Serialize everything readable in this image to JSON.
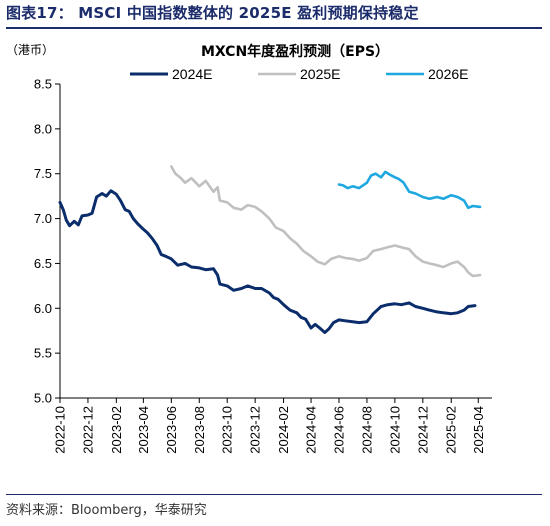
{
  "figure": {
    "title": "图表17：  MSCI 中国指数整体的 2025E 盈利预期保持稳定",
    "source": "资料来源：Bloomberg，华泰研究"
  },
  "chart_data": {
    "type": "line",
    "title": "MXCN年度盈利预测（EPS）",
    "unit": "（港币）",
    "xlabel": "",
    "ylabel": "",
    "ylim": [
      5.0,
      8.5
    ],
    "yticks": [
      "8.5",
      "8.0",
      "7.5",
      "7.0",
      "6.5",
      "6.0",
      "5.5",
      "5.0"
    ],
    "xlim": [
      "2022-10",
      "2025-05"
    ],
    "xticks": [
      "2022-10",
      "2022-12",
      "2023-02",
      "2023-04",
      "2023-06",
      "2023-08",
      "2023-10",
      "2023-12",
      "2024-02",
      "2024-04",
      "2024-06",
      "2024-08",
      "2024-10",
      "2024-12",
      "2025-02",
      "2025-04"
    ],
    "grid": false,
    "legend_position": "top",
    "series": [
      {
        "name": "2024E",
        "color": "#0b2d6b",
        "points": [
          [
            "2022-10-01",
            7.18
          ],
          [
            "2022-10-08",
            7.1
          ],
          [
            "2022-10-15",
            6.98
          ],
          [
            "2022-10-22",
            6.92
          ],
          [
            "2022-11-01",
            6.97
          ],
          [
            "2022-11-10",
            6.93
          ],
          [
            "2022-11-18",
            7.03
          ],
          [
            "2022-12-01",
            7.04
          ],
          [
            "2022-12-10",
            7.06
          ],
          [
            "2022-12-20",
            7.24
          ],
          [
            "2023-01-01",
            7.28
          ],
          [
            "2023-01-10",
            7.25
          ],
          [
            "2023-01-20",
            7.31
          ],
          [
            "2023-02-01",
            7.27
          ],
          [
            "2023-02-10",
            7.2
          ],
          [
            "2023-02-20",
            7.1
          ],
          [
            "2023-03-01",
            7.08
          ],
          [
            "2023-03-10",
            7.0
          ],
          [
            "2023-03-20",
            6.94
          ],
          [
            "2023-04-01",
            6.88
          ],
          [
            "2023-04-10",
            6.84
          ],
          [
            "2023-04-20",
            6.78
          ],
          [
            "2023-05-01",
            6.7
          ],
          [
            "2023-05-10",
            6.6
          ],
          [
            "2023-05-20",
            6.58
          ],
          [
            "2023-06-01",
            6.55
          ],
          [
            "2023-06-15",
            6.48
          ],
          [
            "2023-07-01",
            6.5
          ],
          [
            "2023-07-15",
            6.46
          ],
          [
            "2023-08-01",
            6.45
          ],
          [
            "2023-08-15",
            6.43
          ],
          [
            "2023-09-01",
            6.44
          ],
          [
            "2023-09-10",
            6.37
          ],
          [
            "2023-09-15",
            6.27
          ],
          [
            "2023-10-01",
            6.25
          ],
          [
            "2023-10-15",
            6.2
          ],
          [
            "2023-11-01",
            6.22
          ],
          [
            "2023-11-15",
            6.25
          ],
          [
            "2023-12-01",
            6.22
          ],
          [
            "2023-12-15",
            6.22
          ],
          [
            "2024-01-01",
            6.17
          ],
          [
            "2024-01-10",
            6.12
          ],
          [
            "2024-01-20",
            6.1
          ],
          [
            "2024-02-01",
            6.04
          ],
          [
            "2024-02-15",
            5.98
          ],
          [
            "2024-03-01",
            5.95
          ],
          [
            "2024-03-10",
            5.9
          ],
          [
            "2024-03-20",
            5.88
          ],
          [
            "2024-04-01",
            5.78
          ],
          [
            "2024-04-10",
            5.82
          ],
          [
            "2024-04-20",
            5.78
          ],
          [
            "2024-05-01",
            5.73
          ],
          [
            "2024-05-10",
            5.77
          ],
          [
            "2024-05-20",
            5.84
          ],
          [
            "2024-06-01",
            5.87
          ],
          [
            "2024-06-15",
            5.86
          ],
          [
            "2024-07-01",
            5.85
          ],
          [
            "2024-07-15",
            5.84
          ],
          [
            "2024-08-01",
            5.85
          ],
          [
            "2024-08-15",
            5.94
          ],
          [
            "2024-09-01",
            6.02
          ],
          [
            "2024-09-15",
            6.04
          ],
          [
            "2024-10-01",
            6.05
          ],
          [
            "2024-10-15",
            6.04
          ],
          [
            "2024-11-01",
            6.06
          ],
          [
            "2024-11-15",
            6.02
          ],
          [
            "2024-12-01",
            6.0
          ],
          [
            "2024-12-15",
            5.98
          ],
          [
            "2025-01-01",
            5.96
          ],
          [
            "2025-01-15",
            5.95
          ],
          [
            "2025-02-01",
            5.94
          ],
          [
            "2025-02-15",
            5.95
          ],
          [
            "2025-03-01",
            5.98
          ],
          [
            "2025-03-10",
            6.02
          ],
          [
            "2025-03-25",
            6.03
          ]
        ]
      },
      {
        "name": "2025E",
        "color": "#c0c0c0",
        "points": [
          [
            "2023-06-01",
            7.58
          ],
          [
            "2023-06-10",
            7.5
          ],
          [
            "2023-06-20",
            7.46
          ],
          [
            "2023-07-01",
            7.4
          ],
          [
            "2023-07-15",
            7.45
          ],
          [
            "2023-08-01",
            7.36
          ],
          [
            "2023-08-15",
            7.42
          ],
          [
            "2023-09-01",
            7.3
          ],
          [
            "2023-09-10",
            7.35
          ],
          [
            "2023-09-15",
            7.2
          ],
          [
            "2023-10-01",
            7.18
          ],
          [
            "2023-10-15",
            7.12
          ],
          [
            "2023-11-01",
            7.1
          ],
          [
            "2023-11-15",
            7.15
          ],
          [
            "2023-12-01",
            7.13
          ],
          [
            "2023-12-15",
            7.08
          ],
          [
            "2024-01-01",
            7.0
          ],
          [
            "2024-01-15",
            6.9
          ],
          [
            "2024-02-01",
            6.86
          ],
          [
            "2024-02-15",
            6.78
          ],
          [
            "2024-03-01",
            6.72
          ],
          [
            "2024-03-15",
            6.64
          ],
          [
            "2024-04-01",
            6.58
          ],
          [
            "2024-04-15",
            6.52
          ],
          [
            "2024-05-01",
            6.49
          ],
          [
            "2024-05-15",
            6.55
          ],
          [
            "2024-06-01",
            6.58
          ],
          [
            "2024-06-15",
            6.56
          ],
          [
            "2024-07-01",
            6.55
          ],
          [
            "2024-07-15",
            6.53
          ],
          [
            "2024-08-01",
            6.56
          ],
          [
            "2024-08-15",
            6.64
          ],
          [
            "2024-09-01",
            6.66
          ],
          [
            "2024-09-15",
            6.68
          ],
          [
            "2024-10-01",
            6.7
          ],
          [
            "2024-10-15",
            6.68
          ],
          [
            "2024-11-01",
            6.66
          ],
          [
            "2024-11-15",
            6.58
          ],
          [
            "2024-12-01",
            6.52
          ],
          [
            "2024-12-15",
            6.5
          ],
          [
            "2025-01-01",
            6.48
          ],
          [
            "2025-01-15",
            6.46
          ],
          [
            "2025-02-01",
            6.5
          ],
          [
            "2025-02-15",
            6.52
          ],
          [
            "2025-03-01",
            6.46
          ],
          [
            "2025-03-10",
            6.4
          ],
          [
            "2025-03-20",
            6.36
          ],
          [
            "2025-04-05",
            6.37
          ]
        ]
      },
      {
        "name": "2026E",
        "color": "#1fa8e0",
        "points": [
          [
            "2024-06-01",
            7.38
          ],
          [
            "2024-06-10",
            7.37
          ],
          [
            "2024-06-20",
            7.34
          ],
          [
            "2024-07-01",
            7.36
          ],
          [
            "2024-07-15",
            7.34
          ],
          [
            "2024-08-01",
            7.4
          ],
          [
            "2024-08-10",
            7.48
          ],
          [
            "2024-08-20",
            7.5
          ],
          [
            "2024-09-01",
            7.46
          ],
          [
            "2024-09-10",
            7.52
          ],
          [
            "2024-09-20",
            7.49
          ],
          [
            "2024-10-01",
            7.46
          ],
          [
            "2024-10-10",
            7.44
          ],
          [
            "2024-10-20",
            7.4
          ],
          [
            "2024-11-01",
            7.3
          ],
          [
            "2024-11-15",
            7.28
          ],
          [
            "2024-12-01",
            7.24
          ],
          [
            "2024-12-15",
            7.22
          ],
          [
            "2025-01-01",
            7.24
          ],
          [
            "2025-01-15",
            7.22
          ],
          [
            "2025-02-01",
            7.26
          ],
          [
            "2025-02-15",
            7.24
          ],
          [
            "2025-03-01",
            7.2
          ],
          [
            "2025-03-10",
            7.12
          ],
          [
            "2025-03-20",
            7.14
          ],
          [
            "2025-04-05",
            7.13
          ]
        ]
      }
    ]
  }
}
